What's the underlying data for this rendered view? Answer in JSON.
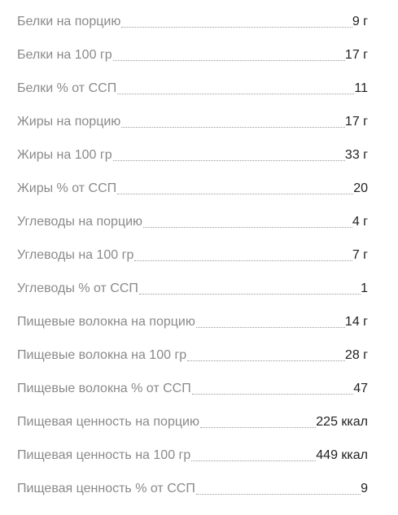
{
  "nutrition": {
    "rows": [
      {
        "label": "Белки на порцию",
        "value": "9 г"
      },
      {
        "label": "Белки на 100 гр",
        "value": "17 г"
      },
      {
        "label": "Белки % от ССП",
        "value": "11"
      },
      {
        "label": "Жиры на порцию",
        "value": "17 г"
      },
      {
        "label": "Жиры на 100 гр",
        "value": "33 г"
      },
      {
        "label": "Жиры % от ССП",
        "value": "20"
      },
      {
        "label": "Углеводы на порцию",
        "value": "4 г"
      },
      {
        "label": "Углеводы на 100 гр",
        "value": "7 г"
      },
      {
        "label": "Углеводы % от ССП",
        "value": "1"
      },
      {
        "label": "Пищевые волокна на порцию",
        "value": "14 г"
      },
      {
        "label": "Пищевые волокна на 100 гр",
        "value": "28 г"
      },
      {
        "label": "Пищевые волокна % от ССП",
        "value": "47"
      },
      {
        "label": "Пищевая ценность на порцию",
        "value": "225 ккал"
      },
      {
        "label": "Пищевая ценность на 100 гр",
        "value": "449 ккал"
      },
      {
        "label": "Пищевая ценность % от ССП",
        "value": "9"
      }
    ]
  }
}
